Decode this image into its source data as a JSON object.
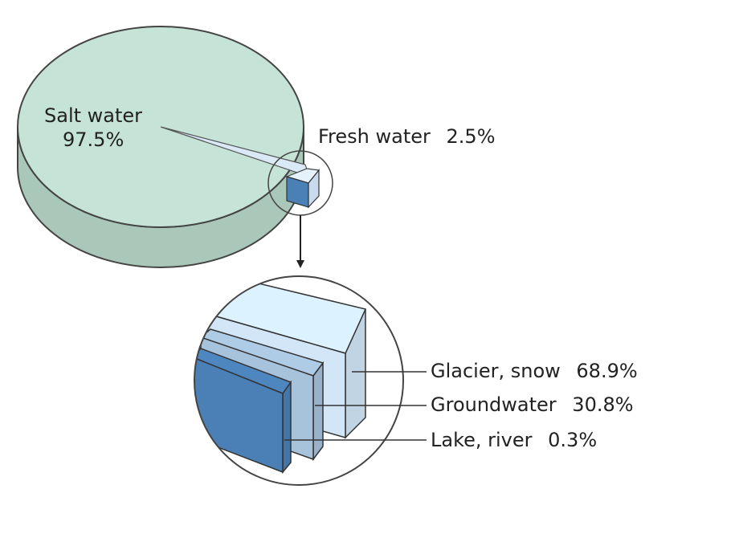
{
  "chart_data": [
    {
      "type": "pie",
      "slices": [
        {
          "label": "Salt water",
          "value": 97.5,
          "value_label": "97.5%",
          "color": "#c5e3d6"
        },
        {
          "label": "Fresh water",
          "value": 2.5,
          "value_label": "2.5%",
          "color": "#6f9fcf"
        }
      ]
    },
    {
      "type": "bar",
      "categories": [
        "Glacier, snow",
        "Groundwater",
        "Lake, river"
      ],
      "values": [
        68.9,
        30.8,
        0.3
      ],
      "value_labels": [
        "68.9%",
        "30.8%",
        "0.3%"
      ],
      "colors": [
        "#d2e6f7",
        "#a7c2db",
        "#4a80b6"
      ]
    }
  ],
  "labels": {
    "salt_name": "Salt water",
    "salt_pct": "97.5%",
    "fresh_name": "Fresh water",
    "fresh_pct": "2.5%",
    "glacier": "Glacier, snow",
    "glacier_pct": "68.9%",
    "ground": "Groundwater",
    "ground_pct": "30.8%",
    "lake": "Lake, river",
    "lake_pct": "0.3%"
  }
}
